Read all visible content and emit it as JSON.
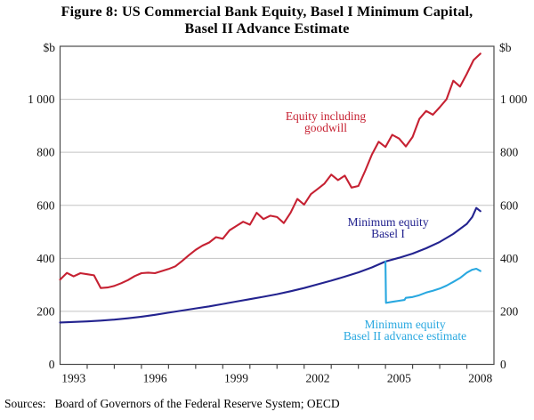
{
  "title": {
    "line1": "Figure 8: US Commercial Bank Equity, Basel I Minimum Capital,",
    "line2": "Basel II Advance Estimate"
  },
  "sources": {
    "prefix": "Sources:",
    "text": "Board of Governors of the Federal Reserve System; OECD"
  },
  "chart_data": {
    "type": "line",
    "title": "Figure 8: US Commercial Bank Equity, Basel I Minimum Capital, Basel II Advance Estimate",
    "xlabel": "",
    "ylabel": "$b",
    "ylabel_unit": "$b",
    "ylim": [
      0,
      1200
    ],
    "xlim": [
      1993,
      2009
    ],
    "grid": "horizontal-light-gray",
    "legend_position": "in-plot-annotations",
    "yticks": [
      0,
      200,
      400,
      600,
      800,
      1000
    ],
    "ytick_labels": [
      "0",
      "200",
      "400",
      "600",
      "800",
      "1 000"
    ],
    "xticks": [
      1994,
      1995,
      1996,
      1997,
      1998,
      1999,
      2000,
      2001,
      2002,
      2003,
      2004,
      2005,
      2006,
      2007,
      2008
    ],
    "xtick_labels": [
      {
        "x": 1993.5,
        "label": "1993"
      },
      {
        "x": 1996.5,
        "label": "1996"
      },
      {
        "x": 1999.5,
        "label": "1999"
      },
      {
        "x": 2002.5,
        "label": "2002"
      },
      {
        "x": 2005.5,
        "label": "2005"
      },
      {
        "x": 2008.5,
        "label": "2008"
      }
    ],
    "colors": {
      "grid": "#C3C3C3",
      "frame": "#4A4A4A",
      "red": "#C62132",
      "dark_blue": "#23238F",
      "light_blue": "#29A8E0"
    },
    "annotations": [
      {
        "id": "equity-including-goodwill",
        "line1": "Equity including",
        "line2": "goodwill",
        "color": "#C62132"
      },
      {
        "id": "minimum-equity-basel-1",
        "line1": "Minimum equity",
        "line2": "Basel I",
        "color": "#23238F"
      },
      {
        "id": "minimum-equity-basel-2",
        "line1": "Minimum equity",
        "line2": "Basel II advance estimate",
        "color": "#29A8E0"
      }
    ],
    "series": [
      {
        "id": "equity-including-goodwill",
        "name": "Equity including goodwill",
        "color": "#C62132",
        "x": [
          1993,
          1993.25,
          1993.5,
          1993.75,
          1994,
          1994.25,
          1994.5,
          1994.75,
          1995,
          1995.25,
          1995.5,
          1995.75,
          1996,
          1996.25,
          1996.5,
          1996.75,
          1997,
          1997.25,
          1997.5,
          1997.75,
          1998,
          1998.25,
          1998.5,
          1998.75,
          1999,
          1999.25,
          1999.5,
          1999.75,
          2000,
          2000.25,
          2000.5,
          2000.75,
          2001,
          2001.25,
          2001.5,
          2001.75,
          2002,
          2002.25,
          2002.5,
          2002.75,
          2003,
          2003.25,
          2003.5,
          2003.75,
          2004,
          2004.25,
          2004.5,
          2004.75,
          2005,
          2005.25,
          2005.5,
          2005.75,
          2006,
          2006.25,
          2006.5,
          2006.75,
          2007,
          2007.25,
          2007.5,
          2007.75,
          2008,
          2008.25,
          2008.5
        ],
        "y": [
          320,
          345,
          332,
          344,
          340,
          336,
          288,
          290,
          296,
          306,
          318,
          333,
          344,
          346,
          344,
          352,
          360,
          370,
          390,
          412,
          432,
          448,
          460,
          480,
          474,
          506,
          522,
          538,
          527,
          572,
          548,
          561,
          556,
          533,
          572,
          624,
          603,
          642,
          662,
          682,
          716,
          695,
          712,
          667,
          673,
          730,
          792,
          840,
          820,
          866,
          852,
          822,
          858,
          926,
          956,
          942,
          970,
          1000,
          1070,
          1048,
          1096,
          1148,
          1172
        ]
      },
      {
        "id": "minimum-equity-basel-1",
        "name": "Minimum equity Basel I",
        "color": "#23238F",
        "x": [
          1993,
          1993.5,
          1994,
          1994.5,
          1995,
          1995.5,
          1996,
          1996.5,
          1997,
          1997.5,
          1998,
          1998.5,
          1999,
          1999.5,
          2000,
          2000.5,
          2001,
          2001.5,
          2002,
          2002.5,
          2003,
          2003.5,
          2004,
          2004.5,
          2005,
          2005.5,
          2006,
          2006.5,
          2007,
          2007.5,
          2008,
          2008.2,
          2008.35,
          2008.5
        ],
        "y": [
          158,
          160,
          162,
          165,
          169,
          174,
          180,
          187,
          195,
          203,
          211,
          219,
          228,
          237,
          246,
          255,
          265,
          276,
          288,
          302,
          316,
          331,
          347,
          366,
          388,
          402,
          418,
          438,
          462,
          492,
          530,
          556,
          590,
          578
        ]
      },
      {
        "id": "minimum-equity-basel-2",
        "name": "Minimum equity Basel II advance estimate",
        "color": "#29A8E0",
        "x": [
          2005,
          2005.02,
          2005.25,
          2005.5,
          2005.7,
          2005.75,
          2006,
          2006.25,
          2006.5,
          2006.75,
          2007,
          2007.25,
          2007.5,
          2007.75,
          2008,
          2008.2,
          2008.35,
          2008.5
        ],
        "y": [
          388,
          232,
          236,
          240,
          243,
          251,
          254,
          261,
          271,
          278,
          286,
          297,
          311,
          326,
          346,
          357,
          361,
          352
        ]
      }
    ]
  }
}
